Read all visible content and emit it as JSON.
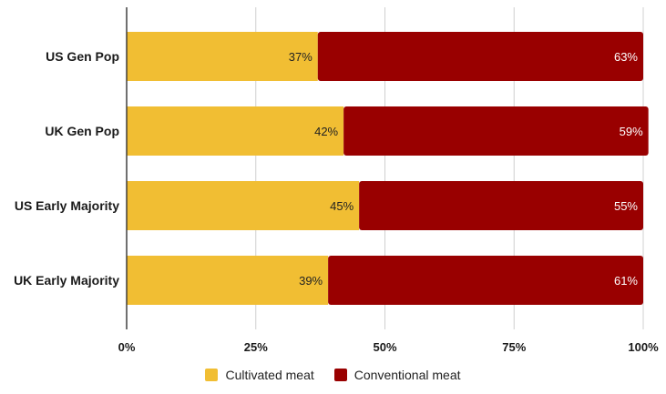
{
  "chart_data": {
    "type": "bar",
    "orientation": "horizontal",
    "stacked": true,
    "title": "",
    "xlabel": "",
    "ylabel": "",
    "xlim": [
      0,
      100
    ],
    "x_ticks": [
      0,
      25,
      50,
      75,
      100
    ],
    "x_tick_labels": [
      "0%",
      "25%",
      "50%",
      "75%",
      "100%"
    ],
    "grid": "vertical",
    "legend_position": "bottom-center",
    "categories": [
      "US Gen Pop",
      "UK Gen Pop",
      "US Early Majority",
      "UK Early Majority"
    ],
    "series": [
      {
        "name": "Cultivated meat",
        "color": "#F1BE33",
        "label_color": "#222222",
        "values": [
          37,
          42,
          45,
          39
        ],
        "labels": [
          "37%",
          "42%",
          "45%",
          "39%"
        ]
      },
      {
        "name": "Conventional meat",
        "color": "#990000",
        "label_color": "#FFFFFF",
        "values": [
          63,
          59,
          55,
          61
        ],
        "labels": [
          "63%",
          "59%",
          "55%",
          "61%"
        ]
      }
    ]
  }
}
